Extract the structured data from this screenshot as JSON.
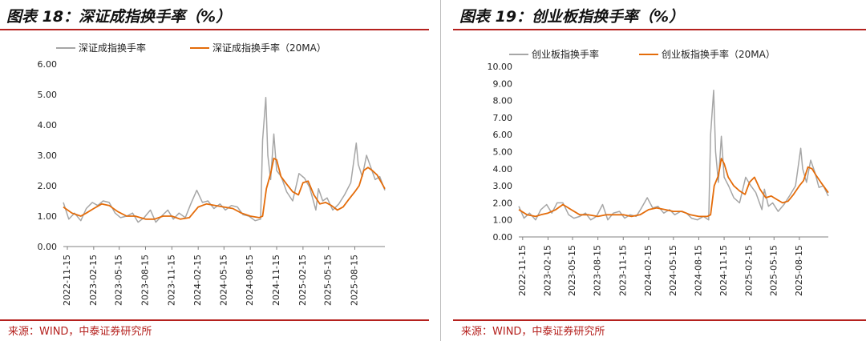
{
  "charts": [
    {
      "title": "图表 18：深证成指换手率（%）",
      "source": "来源：WIND，中泰证券研究所"
    },
    {
      "title": "图表 19：创业板指换手率（%）",
      "source": "来源：WIND，中泰证券研究所"
    }
  ],
  "chart_data": [
    {
      "type": "line",
      "title": "图表 18：深证成指换手率（%）",
      "legend_position": "top",
      "grid": false,
      "ylim": [
        0,
        6
      ],
      "yticks": [
        "0.00",
        "1.00",
        "2.00",
        "3.00",
        "4.00",
        "5.00",
        "6.00"
      ],
      "xlim": [
        "2022-11-01",
        "2025-11-28"
      ],
      "xticks": [
        "2022-11-15",
        "2023-02-15",
        "2023-05-15",
        "2023-08-15",
        "2023-11-15",
        "2024-02-15",
        "2024-05-15",
        "2024-08-15",
        "2024-11-15",
        "2025-02-15",
        "2025-05-15",
        "2025-08-15"
      ],
      "colors": {
        "daily": "#a6a6a6",
        "ma": "#e46c0a"
      },
      "series": [
        {
          "name": "深证成指换手率",
          "x": [
            "2022-11-01",
            "2022-11-20",
            "2022-12-10",
            "2023-01-01",
            "2023-01-20",
            "2023-02-10",
            "2023-03-01",
            "2023-03-20",
            "2023-04-10",
            "2023-05-01",
            "2023-05-20",
            "2023-06-10",
            "2023-07-01",
            "2023-07-20",
            "2023-08-10",
            "2023-09-01",
            "2023-09-20",
            "2023-10-10",
            "2023-11-01",
            "2023-11-20",
            "2023-12-10",
            "2024-01-01",
            "2024-01-20",
            "2024-02-10",
            "2024-03-01",
            "2024-03-20",
            "2024-04-10",
            "2024-05-01",
            "2024-05-20",
            "2024-06-10",
            "2024-07-01",
            "2024-07-20",
            "2024-08-10",
            "2024-09-01",
            "2024-09-20",
            "2024-09-27",
            "2024-10-08",
            "2024-10-15",
            "2024-10-25",
            "2024-11-05",
            "2024-11-15",
            "2024-12-01",
            "2024-12-20",
            "2025-01-10",
            "2025-02-01",
            "2025-02-20",
            "2025-03-10",
            "2025-04-01",
            "2025-04-10",
            "2025-04-25",
            "2025-05-10",
            "2025-05-30",
            "2025-06-20",
            "2025-07-10",
            "2025-08-01",
            "2025-08-20",
            "2025-08-27",
            "2025-09-10",
            "2025-09-25",
            "2025-10-10",
            "2025-10-25",
            "2025-11-10",
            "2025-11-28"
          ],
          "values": [
            1.45,
            0.9,
            1.1,
            0.85,
            1.25,
            1.45,
            1.35,
            1.5,
            1.45,
            1.1,
            0.95,
            1.0,
            1.1,
            0.8,
            0.95,
            1.2,
            0.8,
            1.0,
            1.2,
            0.9,
            1.1,
            0.95,
            1.4,
            1.85,
            1.45,
            1.5,
            1.25,
            1.4,
            1.2,
            1.35,
            1.3,
            1.05,
            1.0,
            0.85,
            0.9,
            3.5,
            4.9,
            3.0,
            2.2,
            3.7,
            2.5,
            2.3,
            1.8,
            1.5,
            2.4,
            2.25,
            1.95,
            1.2,
            1.9,
            1.5,
            1.6,
            1.2,
            1.4,
            1.7,
            2.1,
            3.4,
            2.7,
            2.3,
            3.0,
            2.6,
            2.2,
            2.3,
            1.85
          ]
        },
        {
          "name": "深证成指换手率（20MA）",
          "x": [
            "2022-11-01",
            "2022-12-01",
            "2023-01-01",
            "2023-01-20",
            "2023-02-15",
            "2023-03-15",
            "2023-04-10",
            "2023-05-10",
            "2023-06-10",
            "2023-07-10",
            "2023-08-15",
            "2023-09-15",
            "2023-10-15",
            "2023-11-15",
            "2023-12-15",
            "2024-01-15",
            "2024-02-15",
            "2024-03-15",
            "2024-04-15",
            "2024-05-15",
            "2024-06-15",
            "2024-07-15",
            "2024-08-15",
            "2024-09-15",
            "2024-09-27",
            "2024-10-10",
            "2024-10-25",
            "2024-11-05",
            "2024-11-15",
            "2024-11-30",
            "2024-12-20",
            "2025-01-10",
            "2025-01-30",
            "2025-02-15",
            "2025-03-05",
            "2025-03-25",
            "2025-04-15",
            "2025-05-05",
            "2025-05-25",
            "2025-06-15",
            "2025-07-05",
            "2025-07-25",
            "2025-08-15",
            "2025-08-30",
            "2025-09-15",
            "2025-09-30",
            "2025-10-15",
            "2025-11-01",
            "2025-11-28"
          ],
          "values": [
            1.3,
            1.1,
            1.0,
            1.1,
            1.25,
            1.4,
            1.35,
            1.15,
            1.0,
            1.0,
            0.9,
            0.9,
            1.0,
            1.0,
            0.9,
            0.95,
            1.3,
            1.4,
            1.35,
            1.3,
            1.25,
            1.1,
            1.0,
            0.95,
            1.0,
            1.9,
            2.4,
            2.9,
            2.85,
            2.3,
            2.05,
            1.8,
            1.7,
            2.1,
            2.15,
            1.7,
            1.4,
            1.45,
            1.35,
            1.2,
            1.3,
            1.55,
            1.8,
            2.0,
            2.5,
            2.6,
            2.5,
            2.35,
            1.9
          ]
        }
      ]
    },
    {
      "type": "line",
      "title": "图表 19：创业板指换手率（%）",
      "legend_position": "top",
      "grid": false,
      "ylim": [
        0,
        10
      ],
      "yticks": [
        "0.00",
        "1.00",
        "2.00",
        "3.00",
        "4.00",
        "5.00",
        "6.00",
        "7.00",
        "8.00",
        "9.00",
        "10.00"
      ],
      "xlim": [
        "2022-11-01",
        "2025-11-28"
      ],
      "xticks": [
        "2022-11-15",
        "2023-02-15",
        "2023-05-15",
        "2023-08-15",
        "2023-11-15",
        "2024-02-15",
        "2024-05-15",
        "2024-08-15",
        "2024-11-15",
        "2025-02-15",
        "2025-05-15",
        "2025-08-15"
      ],
      "colors": {
        "daily": "#a6a6a6",
        "ma": "#e46c0a"
      },
      "series": [
        {
          "name": "创业板指换手率",
          "x": [
            "2022-11-01",
            "2022-11-20",
            "2022-12-10",
            "2023-01-01",
            "2023-01-20",
            "2023-02-10",
            "2023-03-01",
            "2023-03-20",
            "2023-04-10",
            "2023-05-01",
            "2023-05-20",
            "2023-06-10",
            "2023-07-01",
            "2023-07-20",
            "2023-08-10",
            "2023-09-01",
            "2023-09-20",
            "2023-10-10",
            "2023-11-01",
            "2023-11-20",
            "2023-12-10",
            "2024-01-01",
            "2024-01-20",
            "2024-02-10",
            "2024-03-01",
            "2024-03-20",
            "2024-04-10",
            "2024-05-01",
            "2024-05-20",
            "2024-06-10",
            "2024-07-01",
            "2024-07-20",
            "2024-08-10",
            "2024-09-01",
            "2024-09-20",
            "2024-09-27",
            "2024-10-08",
            "2024-10-15",
            "2024-10-25",
            "2024-11-05",
            "2024-11-15",
            "2024-12-01",
            "2024-12-20",
            "2025-01-10",
            "2025-02-01",
            "2025-02-20",
            "2025-03-10",
            "2025-04-01",
            "2025-04-10",
            "2025-04-25",
            "2025-05-10",
            "2025-05-30",
            "2025-06-20",
            "2025-07-10",
            "2025-08-01",
            "2025-08-20",
            "2025-08-27",
            "2025-09-10",
            "2025-09-25",
            "2025-10-10",
            "2025-10-25",
            "2025-11-10",
            "2025-11-28"
          ],
          "values": [
            1.8,
            1.1,
            1.4,
            1.0,
            1.6,
            1.9,
            1.4,
            2.0,
            2.0,
            1.3,
            1.1,
            1.2,
            1.4,
            1.0,
            1.2,
            1.9,
            1.0,
            1.4,
            1.5,
            1.1,
            1.3,
            1.2,
            1.7,
            2.3,
            1.7,
            1.8,
            1.4,
            1.6,
            1.3,
            1.5,
            1.4,
            1.1,
            1.0,
            1.2,
            1.0,
            6.0,
            8.6,
            5.0,
            3.2,
            5.9,
            3.5,
            3.0,
            2.3,
            2.0,
            3.5,
            3.0,
            2.6,
            1.6,
            2.8,
            1.8,
            2.0,
            1.5,
            1.9,
            2.4,
            3.0,
            5.2,
            4.0,
            3.2,
            4.5,
            3.8,
            2.9,
            3.0,
            2.4
          ]
        },
        {
          "name": "创业板指换手率（20MA）",
          "x": [
            "2022-11-01",
            "2022-12-01",
            "2023-01-01",
            "2023-01-20",
            "2023-02-15",
            "2023-03-15",
            "2023-04-10",
            "2023-05-10",
            "2023-06-10",
            "2023-07-10",
            "2023-08-15",
            "2023-09-15",
            "2023-10-15",
            "2023-11-15",
            "2023-12-15",
            "2024-01-15",
            "2024-02-15",
            "2024-03-15",
            "2024-04-15",
            "2024-05-15",
            "2024-06-15",
            "2024-07-15",
            "2024-08-15",
            "2024-09-15",
            "2024-09-27",
            "2024-10-10",
            "2024-10-25",
            "2024-11-05",
            "2024-11-15",
            "2024-11-30",
            "2024-12-20",
            "2025-01-10",
            "2025-01-30",
            "2025-02-15",
            "2025-03-05",
            "2025-03-25",
            "2025-04-15",
            "2025-05-05",
            "2025-05-25",
            "2025-06-15",
            "2025-07-05",
            "2025-07-25",
            "2025-08-15",
            "2025-08-30",
            "2025-09-15",
            "2025-09-30",
            "2025-10-15",
            "2025-11-01",
            "2025-11-28"
          ],
          "values": [
            1.6,
            1.3,
            1.2,
            1.3,
            1.4,
            1.6,
            1.9,
            1.6,
            1.3,
            1.3,
            1.2,
            1.3,
            1.3,
            1.3,
            1.2,
            1.3,
            1.6,
            1.7,
            1.6,
            1.5,
            1.5,
            1.3,
            1.2,
            1.2,
            1.3,
            3.0,
            3.6,
            4.6,
            4.3,
            3.5,
            3.0,
            2.7,
            2.5,
            3.2,
            3.5,
            2.8,
            2.3,
            2.4,
            2.2,
            2.0,
            2.1,
            2.5,
            3.0,
            3.3,
            4.1,
            4.0,
            3.6,
            3.2,
            2.6
          ]
        }
      ]
    }
  ]
}
